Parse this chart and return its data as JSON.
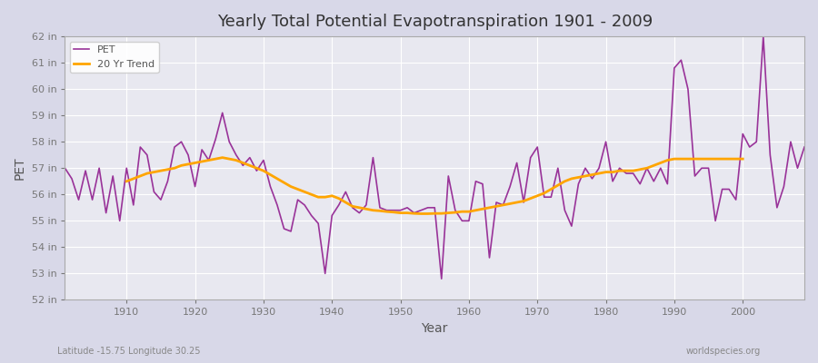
{
  "title": "Yearly Total Potential Evapotranspiration 1901 - 2009",
  "xlabel": "Year",
  "ylabel": "PET",
  "bottom_left_label": "Latitude -15.75 Longitude 30.25",
  "bottom_right_label": "worldspecies.org",
  "pet_color": "#993399",
  "trend_color": "#FFA500",
  "bg_color": "#e8e8f0",
  "plot_bg_color": "#e8e8f0",
  "ylim": [
    52,
    62
  ],
  "yticks": [
    52,
    53,
    54,
    55,
    56,
    57,
    58,
    59,
    60,
    61,
    62
  ],
  "years": [
    1901,
    1902,
    1903,
    1904,
    1905,
    1906,
    1907,
    1908,
    1909,
    1910,
    1911,
    1912,
    1913,
    1914,
    1915,
    1916,
    1917,
    1918,
    1919,
    1920,
    1921,
    1922,
    1923,
    1924,
    1925,
    1926,
    1927,
    1928,
    1929,
    1930,
    1931,
    1932,
    1933,
    1934,
    1935,
    1936,
    1937,
    1938,
    1939,
    1940,
    1941,
    1942,
    1943,
    1944,
    1945,
    1946,
    1947,
    1948,
    1949,
    1950,
    1951,
    1952,
    1953,
    1954,
    1955,
    1956,
    1957,
    1958,
    1959,
    1960,
    1961,
    1962,
    1963,
    1964,
    1965,
    1966,
    1967,
    1968,
    1969,
    1970,
    1971,
    1972,
    1973,
    1974,
    1975,
    1976,
    1977,
    1978,
    1979,
    1980,
    1981,
    1982,
    1983,
    1984,
    1985,
    1986,
    1987,
    1988,
    1989,
    1990,
    1991,
    1992,
    1993,
    1994,
    1995,
    1996,
    1997,
    1998,
    1999,
    2000,
    2001,
    2002,
    2003,
    2004,
    2005,
    2006,
    2007,
    2008,
    2009
  ],
  "pet_values": [
    57.0,
    56.6,
    55.8,
    56.9,
    55.8,
    57.0,
    55.3,
    56.7,
    55.0,
    57.0,
    55.6,
    57.8,
    57.5,
    56.1,
    55.8,
    56.5,
    57.8,
    58.0,
    57.5,
    56.3,
    57.7,
    57.3,
    58.1,
    59.1,
    58.0,
    57.5,
    57.1,
    57.4,
    56.9,
    57.3,
    56.3,
    55.6,
    54.7,
    54.6,
    55.8,
    55.6,
    55.2,
    54.9,
    53.0,
    55.2,
    55.6,
    56.1,
    55.5,
    55.3,
    55.6,
    57.4,
    55.5,
    55.4,
    55.4,
    55.4,
    55.5,
    55.3,
    55.4,
    55.5,
    55.5,
    52.8,
    56.7,
    55.4,
    55.0,
    55.0,
    56.5,
    56.4,
    53.6,
    55.7,
    55.6,
    56.3,
    57.2,
    55.7,
    57.4,
    57.8,
    55.9,
    55.9,
    57.0,
    55.4,
    54.8,
    56.4,
    57.0,
    56.6,
    57.0,
    58.0,
    56.5,
    57.0,
    56.8,
    56.8,
    56.4,
    57.0,
    56.5,
    57.0,
    56.4,
    60.8,
    61.1,
    60.0,
    56.7,
    57.0,
    57.0,
    55.0,
    56.2,
    56.2,
    55.8,
    58.3,
    57.8,
    58.0,
    62.0,
    57.5,
    55.5,
    56.3,
    58.0,
    57.0,
    57.8
  ],
  "trend_values_x": [
    1910,
    1911,
    1912,
    1913,
    1914,
    1915,
    1916,
    1917,
    1918,
    1919,
    1920,
    1921,
    1922,
    1923,
    1924,
    1925,
    1926,
    1927,
    1928,
    1929,
    1930,
    1931,
    1932,
    1933,
    1934,
    1935,
    1936,
    1937,
    1938,
    1939,
    1940,
    1941,
    1942,
    1943,
    1944,
    1945,
    1946,
    1947,
    1948,
    1949,
    1950,
    1951,
    1952,
    1953,
    1954,
    1955,
    1956,
    1957,
    1958,
    1959,
    1960,
    1961,
    1962,
    1963,
    1964,
    1965,
    1966,
    1967,
    1968,
    1969,
    1970,
    1971,
    1972,
    1973,
    1974,
    1975,
    1976,
    1977,
    1978,
    1979,
    1980,
    1981,
    1982,
    1983,
    1984,
    1985,
    1986,
    1987,
    1988,
    1989,
    1990,
    1991,
    1992,
    1993,
    1994,
    1995,
    1996,
    1997,
    1998,
    1999,
    2000
  ],
  "trend_values_y": [
    56.5,
    56.6,
    56.7,
    56.8,
    56.85,
    56.9,
    56.95,
    57.0,
    57.1,
    57.15,
    57.2,
    57.25,
    57.3,
    57.35,
    57.4,
    57.35,
    57.3,
    57.2,
    57.1,
    57.0,
    56.9,
    56.75,
    56.6,
    56.45,
    56.3,
    56.2,
    56.1,
    56.0,
    55.9,
    55.9,
    55.95,
    55.85,
    55.7,
    55.55,
    55.5,
    55.45,
    55.4,
    55.38,
    55.35,
    55.33,
    55.3,
    55.3,
    55.28,
    55.27,
    55.27,
    55.28,
    55.28,
    55.3,
    55.32,
    55.35,
    55.35,
    55.4,
    55.45,
    55.5,
    55.55,
    55.6,
    55.65,
    55.7,
    55.75,
    55.85,
    55.95,
    56.05,
    56.2,
    56.35,
    56.5,
    56.6,
    56.65,
    56.7,
    56.75,
    56.8,
    56.85,
    56.85,
    56.9,
    56.9,
    56.9,
    56.95,
    57.0,
    57.1,
    57.2,
    57.3,
    57.35,
    57.35,
    57.35,
    57.35,
    57.35,
    57.35,
    57.35,
    57.35,
    57.35,
    57.35,
    57.35
  ]
}
